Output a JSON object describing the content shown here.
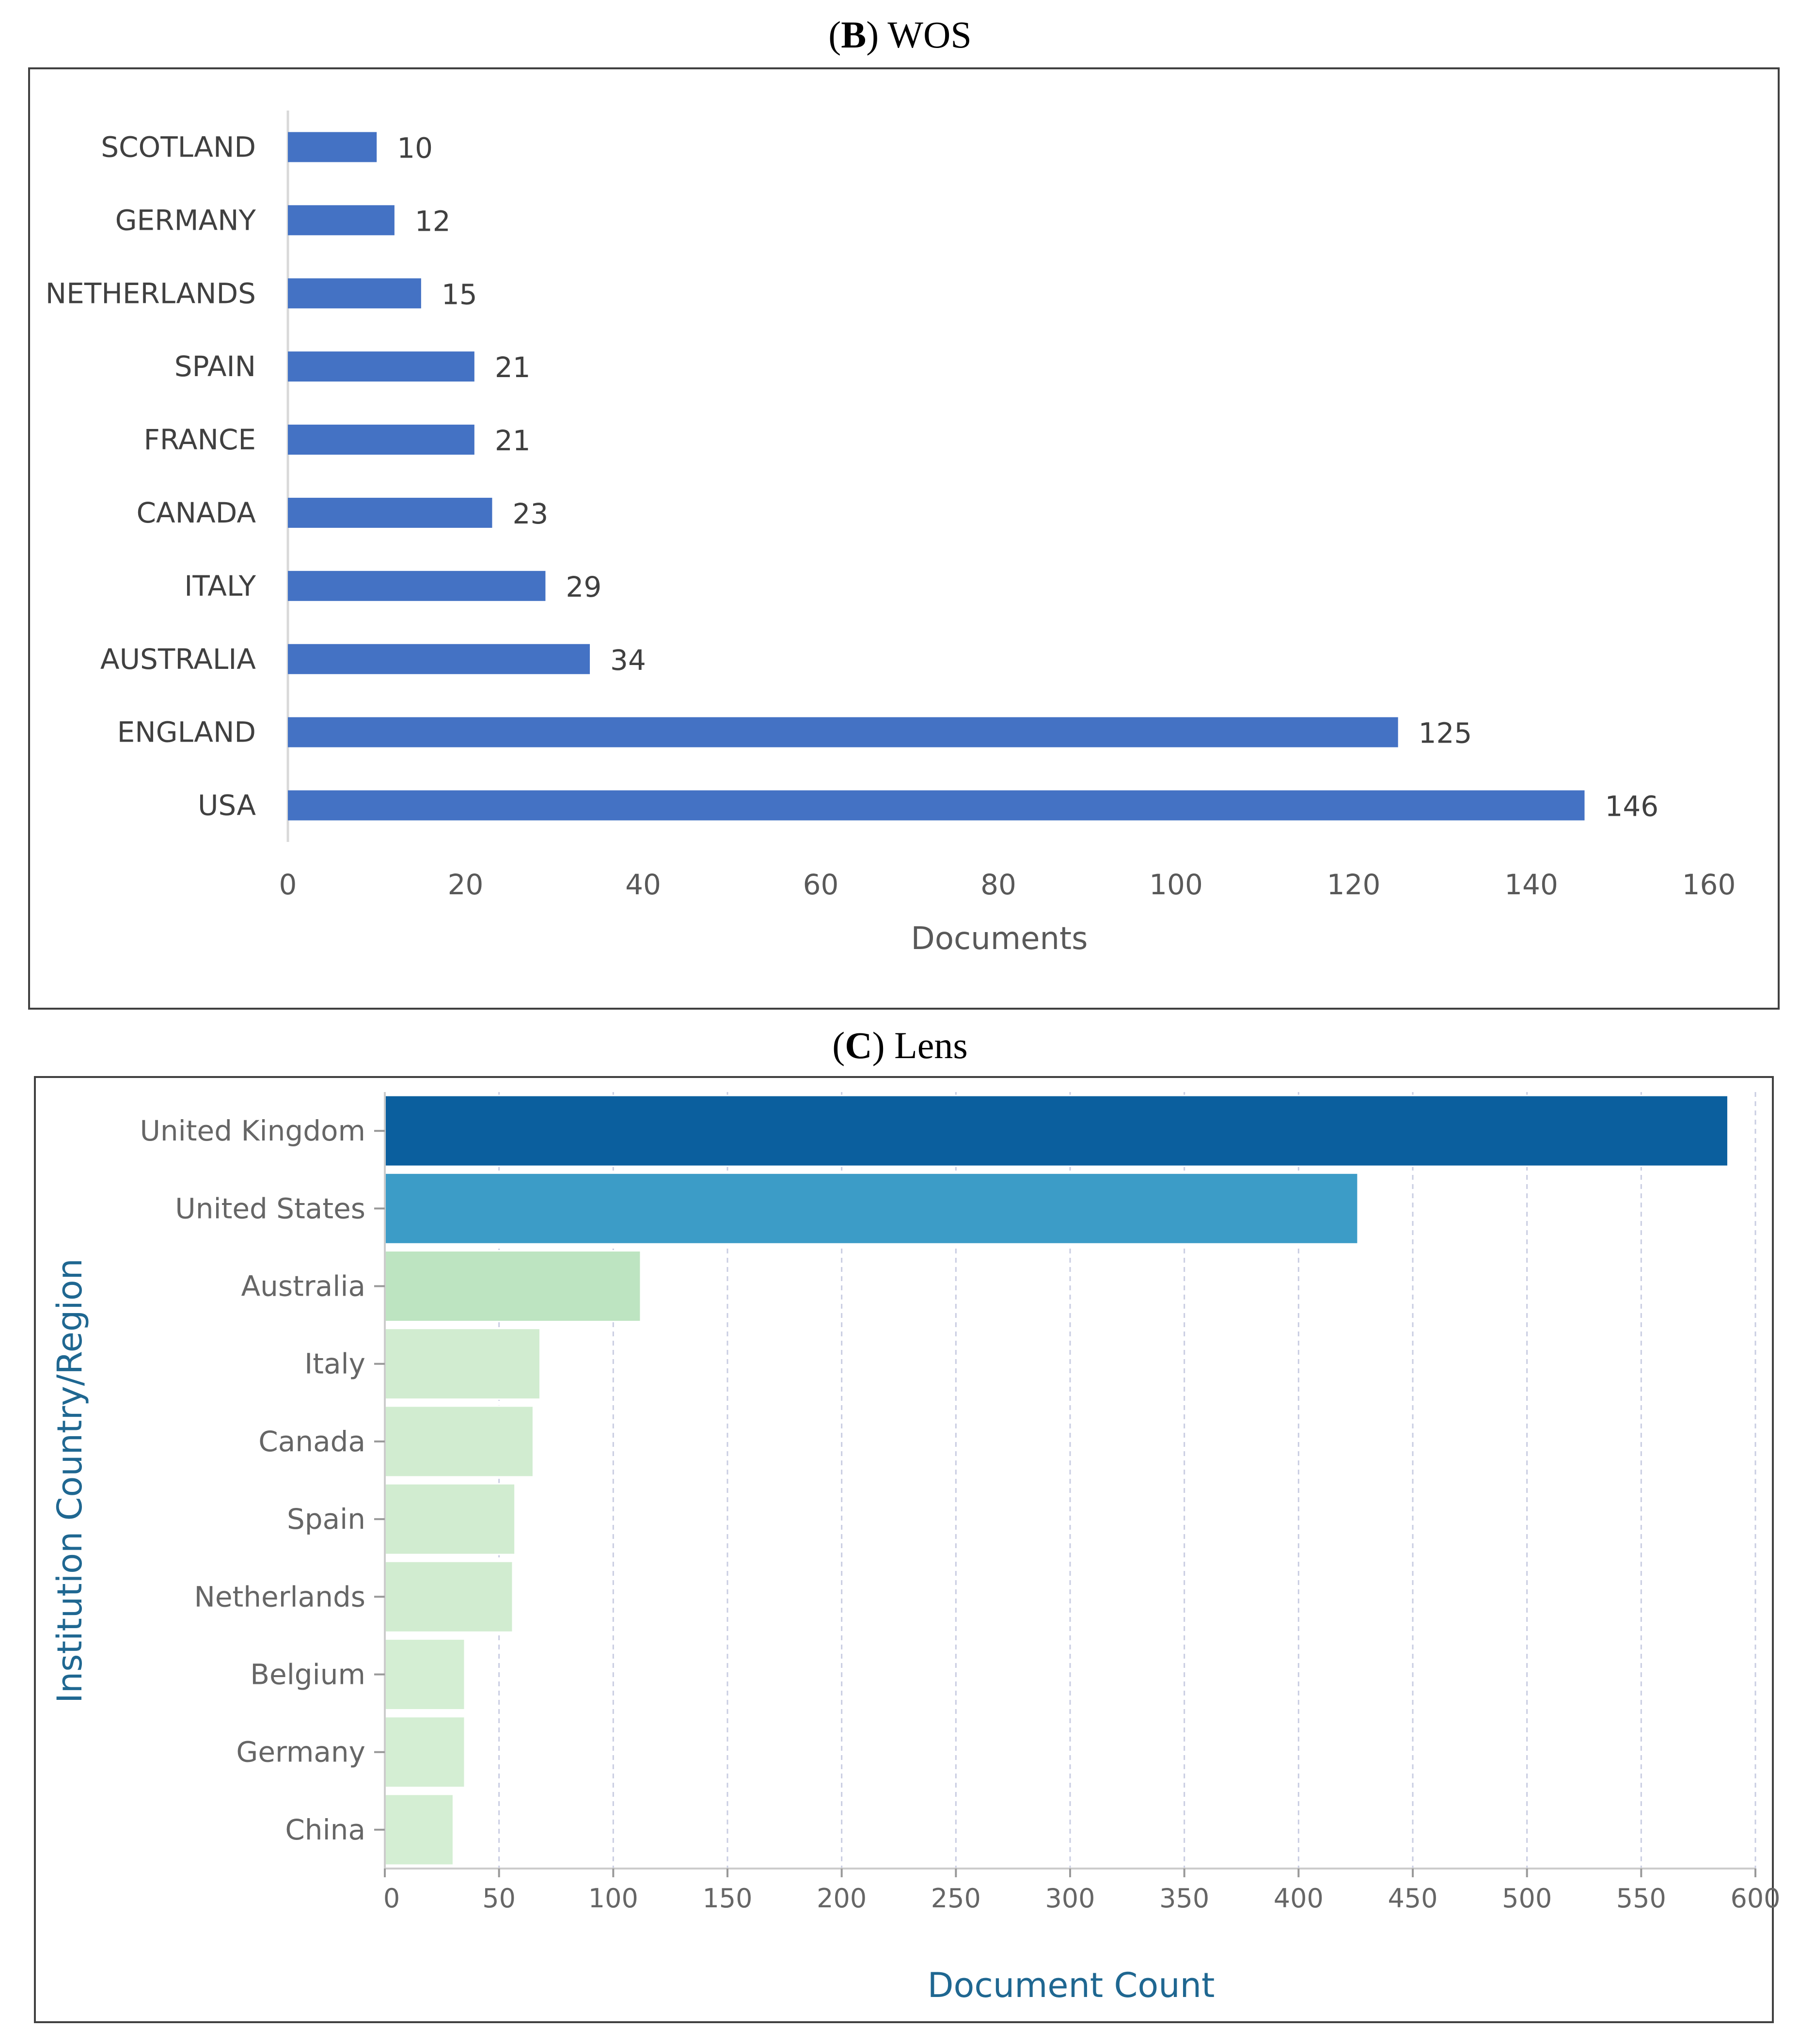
{
  "panels": {
    "wos": {
      "title_letter": "B",
      "title_text": "WOS"
    },
    "lens": {
      "title_letter": "C",
      "title_text": "Lens"
    }
  },
  "chart_data": [
    {
      "type": "bar",
      "orientation": "horizontal",
      "categories": [
        "SCOTLAND",
        "GERMANY",
        "NETHERLANDS",
        "SPAIN",
        "FRANCE",
        "CANADA",
        "ITALY",
        "AUSTRALIA",
        "ENGLAND",
        "USA"
      ],
      "values": [
        10,
        12,
        15,
        21,
        21,
        23,
        29,
        34,
        125,
        146
      ],
      "data_labels": [
        "10",
        "12",
        "15",
        "21",
        "21",
        "23",
        "29",
        "34",
        "125",
        "146"
      ],
      "title": "",
      "xlabel": "Documents",
      "ylabel": "",
      "xlim": [
        0,
        160
      ],
      "xticks": [
        0,
        20,
        40,
        60,
        80,
        100,
        120,
        140,
        160
      ],
      "grid": false,
      "bar_color": "#4472c4"
    },
    {
      "type": "bar",
      "orientation": "horizontal",
      "categories": [
        "United Kingdom",
        "United States",
        "Australia",
        "Italy",
        "Canada",
        "Spain",
        "Netherlands",
        "Belgium",
        "Germany",
        "China"
      ],
      "values": [
        588,
        426,
        112,
        68,
        65,
        57,
        56,
        35,
        35,
        30
      ],
      "colors": [
        "#0b5f9e",
        "#3c9cc7",
        "#bde4c1",
        "#d1ecd0",
        "#d1ecd0",
        "#d1ecd0",
        "#d1ecd0",
        "#d4eed3",
        "#d4eed3",
        "#d4eed3"
      ],
      "title": "",
      "xlabel": "Document Count",
      "ylabel": "Institution Country/Region",
      "xlim": [
        0,
        600
      ],
      "xticks": [
        0,
        50,
        100,
        150,
        200,
        250,
        300,
        350,
        400,
        450,
        500,
        550,
        600
      ],
      "grid": "vertical dashed"
    }
  ]
}
